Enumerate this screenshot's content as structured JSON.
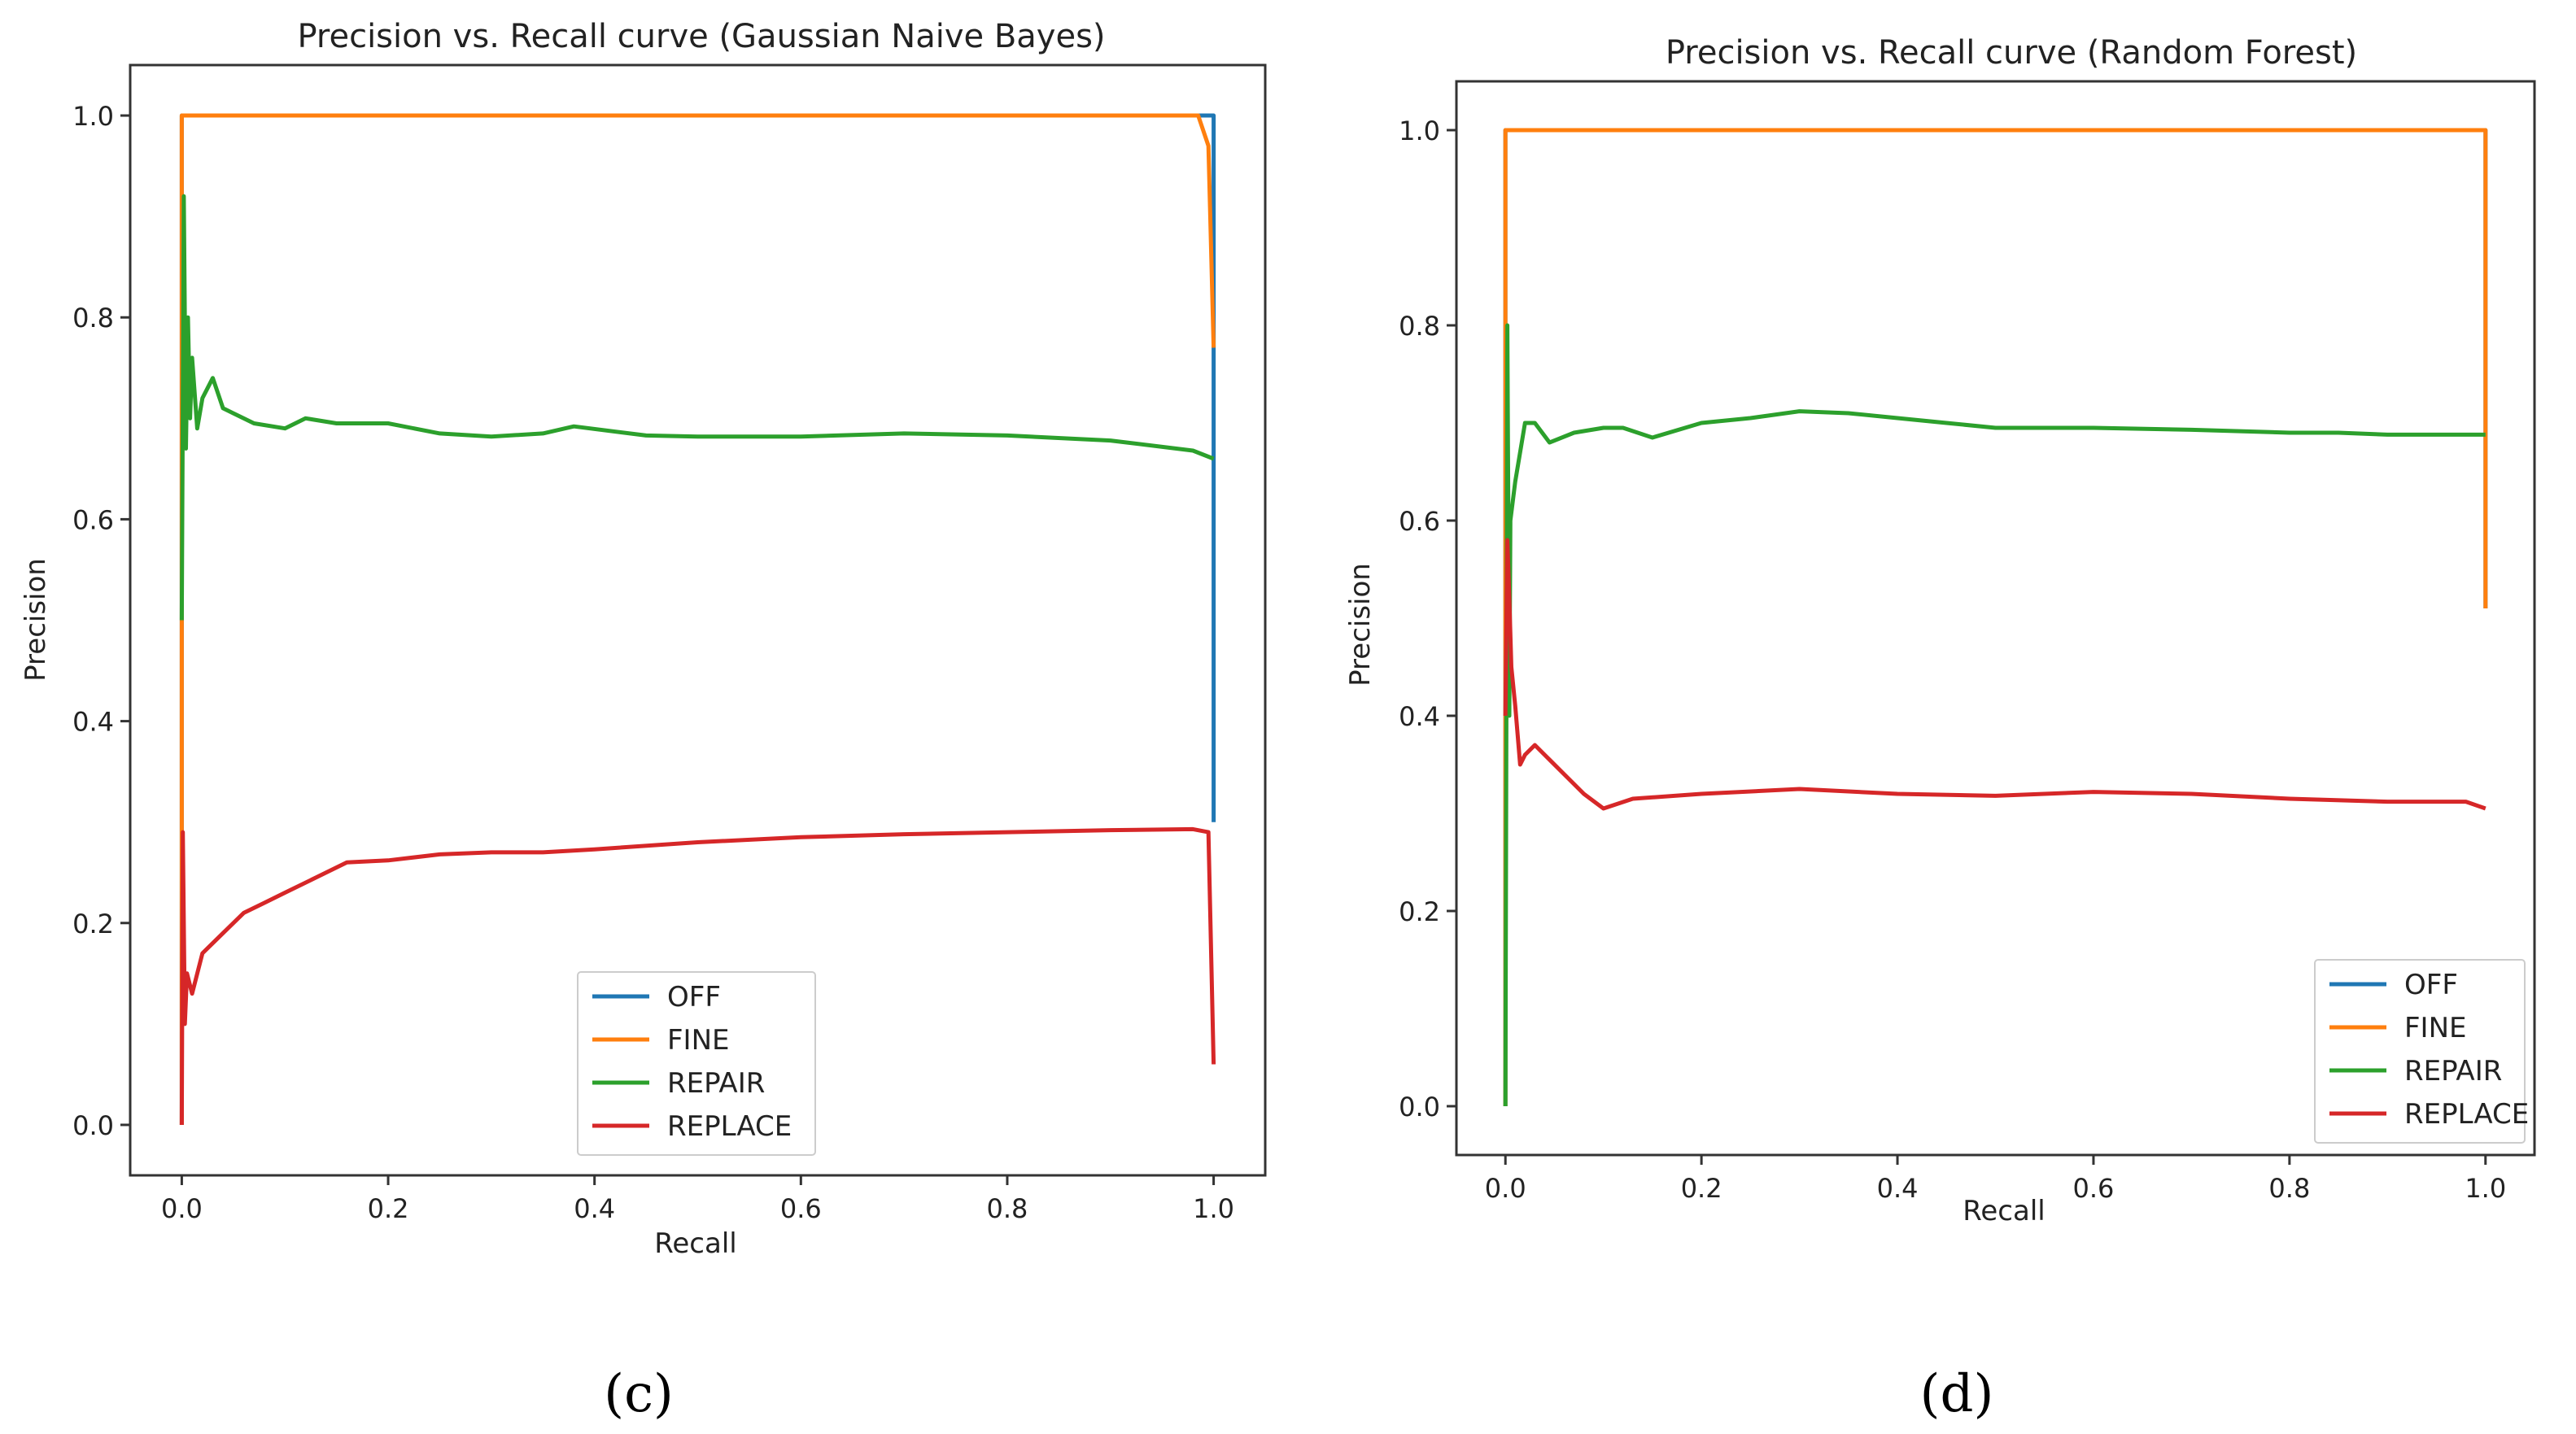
{
  "figure": {
    "panels": [
      "(c)",
      "(d)"
    ]
  },
  "colors": {
    "OFF": "#1f77b4",
    "FINE": "#ff7f0e",
    "REPAIR": "#2ca02c",
    "REPLACE": "#d62728"
  },
  "chart_data": [
    {
      "type": "line",
      "panel_label": "(c)",
      "title": "Precision vs. Recall curve (Gaussian Naive Bayes)",
      "xlabel": "Recall",
      "ylabel": "Precision",
      "xlim": [
        -0.05,
        1.05
      ],
      "ylim": [
        -0.05,
        1.05
      ],
      "xticks": [
        0.0,
        0.2,
        0.4,
        0.6,
        0.8,
        1.0
      ],
      "yticks": [
        0.0,
        0.2,
        0.4,
        0.6,
        0.8,
        1.0
      ],
      "legend_position": "lower-center",
      "grid": false,
      "series": [
        {
          "name": "OFF",
          "x": [
            0.0,
            0.0,
            0.99,
            1.0,
            1.0
          ],
          "y": [
            0.0,
            1.0,
            1.0,
            1.0,
            0.3
          ]
        },
        {
          "name": "FINE",
          "x": [
            0.0,
            0.0,
            0.985,
            0.995,
            1.0
          ],
          "y": [
            0.0,
            1.0,
            1.0,
            0.97,
            0.77
          ]
        },
        {
          "name": "REPAIR",
          "x": [
            0.0,
            0.002,
            0.004,
            0.006,
            0.008,
            0.01,
            0.015,
            0.02,
            0.03,
            0.04,
            0.05,
            0.07,
            0.1,
            0.12,
            0.15,
            0.2,
            0.25,
            0.3,
            0.35,
            0.38,
            0.45,
            0.5,
            0.6,
            0.7,
            0.8,
            0.9,
            0.98,
            1.0
          ],
          "y": [
            0.5,
            0.92,
            0.67,
            0.8,
            0.7,
            0.76,
            0.69,
            0.72,
            0.74,
            0.71,
            0.705,
            0.695,
            0.69,
            0.7,
            0.695,
            0.695,
            0.685,
            0.682,
            0.685,
            0.692,
            0.683,
            0.682,
            0.682,
            0.685,
            0.683,
            0.678,
            0.668,
            0.66
          ]
        },
        {
          "name": "REPLACE",
          "x": [
            0.0,
            0.001,
            0.003,
            0.005,
            0.01,
            0.02,
            0.04,
            0.06,
            0.08,
            0.1,
            0.13,
            0.16,
            0.2,
            0.25,
            0.3,
            0.35,
            0.4,
            0.5,
            0.6,
            0.7,
            0.8,
            0.9,
            0.98,
            0.995,
            1.0
          ],
          "y": [
            0.0,
            0.29,
            0.1,
            0.15,
            0.13,
            0.17,
            0.19,
            0.21,
            0.22,
            0.23,
            0.245,
            0.26,
            0.262,
            0.268,
            0.27,
            0.27,
            0.273,
            0.28,
            0.285,
            0.288,
            0.29,
            0.292,
            0.293,
            0.29,
            0.06
          ]
        }
      ]
    },
    {
      "type": "line",
      "panel_label": "(d)",
      "title": "Precision vs. Recall curve (Random Forest)",
      "xlabel": "Recall",
      "ylabel": "Precision",
      "xlim": [
        -0.05,
        1.05
      ],
      "ylim": [
        -0.05,
        1.05
      ],
      "xticks": [
        0.0,
        0.2,
        0.4,
        0.6,
        0.8,
        1.0
      ],
      "yticks": [
        0.0,
        0.2,
        0.4,
        0.6,
        0.8,
        1.0
      ],
      "legend_position": "lower-right",
      "grid": false,
      "series": [
        {
          "name": "OFF",
          "x": [
            0.0,
            0.0,
            1.0,
            1.0
          ],
          "y": [
            0.0,
            1.0,
            1.0,
            0.51
          ]
        },
        {
          "name": "FINE",
          "x": [
            0.0,
            0.0,
            1.0,
            1.0
          ],
          "y": [
            0.0,
            1.0,
            1.0,
            0.51
          ]
        },
        {
          "name": "REPAIR",
          "x": [
            0.0,
            0.002,
            0.004,
            0.005,
            0.01,
            0.02,
            0.03,
            0.045,
            0.07,
            0.1,
            0.12,
            0.15,
            0.2,
            0.25,
            0.3,
            0.35,
            0.4,
            0.45,
            0.5,
            0.6,
            0.7,
            0.8,
            0.85,
            0.9,
            1.0
          ],
          "y": [
            0.0,
            0.8,
            0.4,
            0.6,
            0.64,
            0.7,
            0.7,
            0.68,
            0.69,
            0.695,
            0.695,
            0.685,
            0.7,
            0.705,
            0.712,
            0.71,
            0.705,
            0.7,
            0.695,
            0.695,
            0.693,
            0.69,
            0.69,
            0.688,
            0.688
          ]
        },
        {
          "name": "REPLACE",
          "x": [
            0.0,
            0.002,
            0.004,
            0.006,
            0.01,
            0.015,
            0.02,
            0.03,
            0.04,
            0.06,
            0.08,
            0.1,
            0.13,
            0.2,
            0.3,
            0.4,
            0.5,
            0.6,
            0.7,
            0.8,
            0.9,
            0.98,
            1.0
          ],
          "y": [
            0.4,
            0.58,
            0.52,
            0.45,
            0.41,
            0.35,
            0.36,
            0.37,
            0.36,
            0.34,
            0.32,
            0.305,
            0.315,
            0.32,
            0.325,
            0.32,
            0.318,
            0.322,
            0.32,
            0.315,
            0.312,
            0.312,
            0.305
          ]
        }
      ]
    }
  ]
}
